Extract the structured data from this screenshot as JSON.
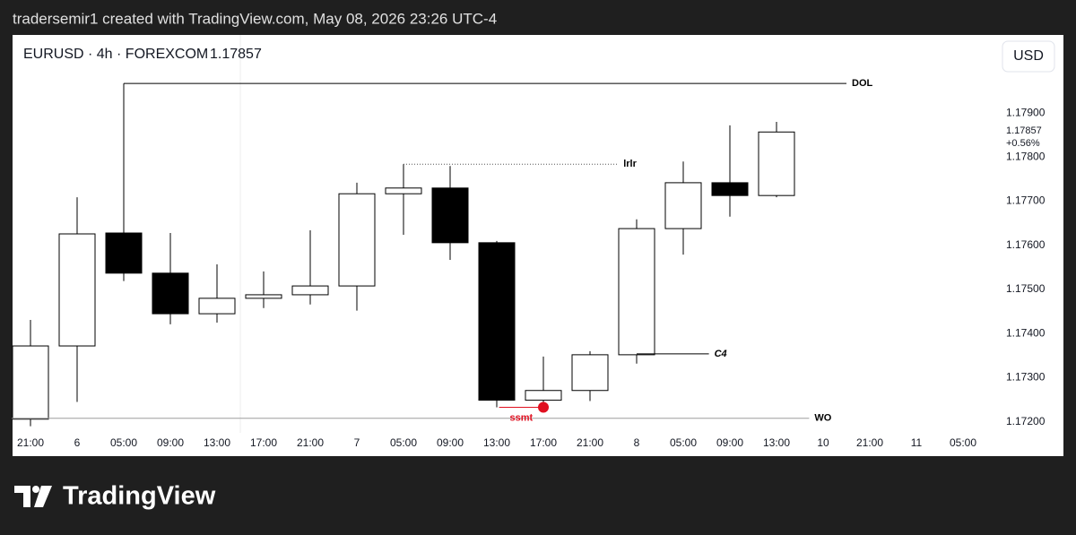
{
  "header": {
    "attribution": "tradersemir1 created with TradingView.com, May 08, 2026 23:26 UTC-4"
  },
  "chart_data": {
    "type": "candlestick",
    "title": "EURUSD · 4h · FOREXCOM",
    "last_price": 1.17857,
    "change_label": "+0.56%",
    "currency": "USD",
    "categories": [
      "21:00",
      "6",
      "05:00",
      "09:00",
      "13:00",
      "17:00",
      "21:00",
      "7",
      "05:00",
      "09:00",
      "13:00",
      "17:00",
      "21:00",
      "8",
      "05:00",
      "09:00",
      "13:00",
      "10",
      "21:00",
      "11",
      "05:00"
    ],
    "open": [
      1.17206,
      1.17372,
      1.17628,
      1.17537,
      1.17445,
      1.1748,
      1.17488,
      1.17508,
      1.17717,
      1.1773,
      1.17606,
      1.17249,
      1.17271,
      1.17352,
      1.17638,
      1.17742,
      1.17713,
      null,
      null,
      null,
      null
    ],
    "high": [
      1.17431,
      1.17709,
      1.1763,
      1.17628,
      1.17557,
      1.17541,
      1.17634,
      1.17742,
      1.17784,
      1.1778,
      1.1761,
      1.17348,
      1.1736,
      1.17659,
      1.1779,
      1.17872,
      1.1788,
      null,
      null,
      null,
      null
    ],
    "low": [
      1.1719,
      1.17245,
      1.17519,
      1.17421,
      1.17425,
      1.17458,
      1.17466,
      1.17452,
      1.17624,
      1.17567,
      1.17233,
      1.17237,
      1.17247,
      1.17332,
      1.17579,
      1.17665,
      1.17709,
      null,
      null,
      null,
      null
    ],
    "close": [
      1.17372,
      1.17626,
      1.17537,
      1.17445,
      1.1748,
      1.17488,
      1.17508,
      1.17717,
      1.1773,
      1.17606,
      1.17249,
      1.17271,
      1.17352,
      1.17638,
      1.17742,
      1.17713,
      1.17857,
      null,
      null,
      null,
      null
    ],
    "up_color": "#ffffff",
    "down_color": "#000000",
    "border_color": "#000000",
    "ylim": [
      1.17175,
      1.18077
    ],
    "yticks": [
      {
        "value": 1.172,
        "label": "1.17200"
      },
      {
        "value": 1.173,
        "label": "1.17300"
      },
      {
        "value": 1.174,
        "label": "1.17400"
      },
      {
        "value": 1.175,
        "label": "1.17500"
      },
      {
        "value": 1.176,
        "label": "1.17600"
      },
      {
        "value": 1.177,
        "label": "1.17700"
      },
      {
        "value": 1.178,
        "label": "1.17800"
      },
      {
        "value": 1.179,
        "label": "1.17900"
      }
    ],
    "annotations": [
      {
        "text": "DOL",
        "price": 1.17967,
        "color": "#000000"
      },
      {
        "text": "lrlr",
        "price": 1.17784,
        "color": "#555555"
      },
      {
        "text": "C4",
        "price": 1.17354,
        "color": "#000000"
      },
      {
        "text": "WO",
        "price": 1.17208,
        "color": "#9e9e9e"
      },
      {
        "text": "ssmt",
        "price": 1.17233,
        "color": "#e01020"
      }
    ]
  },
  "footer": {
    "brand": "TradingView"
  }
}
